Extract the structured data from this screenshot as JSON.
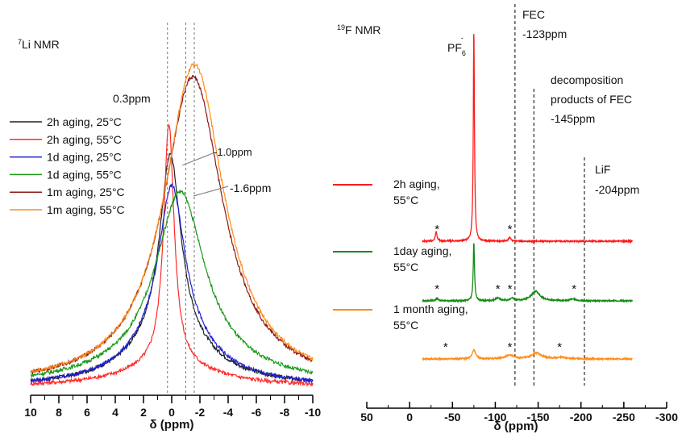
{
  "chart_data": [
    {
      "type": "line",
      "panel": "left",
      "title_prefix": "7",
      "title": "Li NMR",
      "xlabel": "δ (ppm)",
      "xlim": [
        10,
        -10
      ],
      "x_reversed": true,
      "x_ticks": [
        10,
        8,
        6,
        4,
        2,
        0,
        -2,
        -4,
        -6,
        -8,
        -10
      ],
      "grid": false,
      "legend_position": "left",
      "legend": [
        {
          "label": "2h aging, 25°C",
          "color": "#222222"
        },
        {
          "label": "2h aging, 55°C",
          "color": "#ff2a2a"
        },
        {
          "label": "1d aging, 25°C",
          "color": "#2020d0"
        },
        {
          "label": "1d aging, 55°C",
          "color": "#1a9a1a"
        },
        {
          "label": "1m aging, 25°C",
          "color": "#8b1a1a"
        },
        {
          "label": "1m aging, 55°C",
          "color": "#ff8c1a"
        }
      ],
      "series": [
        {
          "name": "2h aging, 25°C",
          "color": "#222222",
          "center": 0.1,
          "amplitude": 0.6,
          "width": 0.9,
          "broad_amplitude": 0.15,
          "broad_width": 3.5
        },
        {
          "name": "2h aging, 55°C",
          "color": "#ff2a2a",
          "center": 0.2,
          "amplitude": 0.78,
          "width": 0.45,
          "broad_amplitude": 0.07,
          "broad_width": 4.0
        },
        {
          "name": "1d aging, 25°C",
          "color": "#2020d0",
          "center": 0.0,
          "amplitude": 0.48,
          "width": 1.1,
          "broad_amplitude": 0.17,
          "broad_width": 3.2
        },
        {
          "name": "1d aging, 55°C",
          "color": "#1a9a1a",
          "center": -0.6,
          "amplitude": 0.56,
          "width": 2.1,
          "broad_amplitude": 0.07,
          "broad_width": 6.0
        },
        {
          "name": "1m aging, 25°C",
          "color": "#8b1a1a",
          "center": -1.5,
          "amplitude": 1.0,
          "width": 2.6,
          "broad_amplitude": 0.0,
          "broad_width": 1.0
        },
        {
          "name": "1m aging, 55°C",
          "color": "#ff8c1a",
          "center": -1.6,
          "amplitude": 1.04,
          "width": 2.6,
          "broad_amplitude": 0.0,
          "broad_width": 1.0
        }
      ],
      "reference_lines": [
        0.3,
        -1.0,
        -1.6
      ],
      "annotations": [
        "0.3ppm",
        "-1.0ppm",
        "-1.6ppm"
      ]
    },
    {
      "type": "line",
      "panel": "right",
      "title_prefix": "19",
      "title": "F NMR",
      "xlabel": "δ (ppm)",
      "xlim": [
        50,
        -300
      ],
      "x_reversed": true,
      "x_ticks": [
        50,
        0,
        -50,
        -100,
        -150,
        -200,
        -250,
        -300
      ],
      "grid": false,
      "reference_lines": [
        -123,
        -145,
        -204
      ],
      "annotations": {
        "pf6_base": "PF",
        "pf6_sub": "6",
        "pf6_sup": "-",
        "fec_name": "FEC",
        "fec_shift": "-123ppm",
        "decomp_line1": "decomposition",
        "decomp_line2": "products of FEC",
        "decomp_line3": "-145ppm",
        "lif_name": "LiF",
        "lif_shift": "-204ppm"
      },
      "x_range_data": [
        -15,
        -260
      ],
      "series": [
        {
          "name_line1": "2h aging,",
          "name_line2": "55°C",
          "color": "#ff1a1a",
          "peaks": [
            {
              "x": -75,
              "height": 1.0,
              "width": 0.8
            },
            {
              "x": -31,
              "height": 0.045,
              "width": 1.2
            },
            {
              "x": -117,
              "height": 0.018,
              "width": 1.5
            }
          ],
          "star_positions": [
            -32,
            -117
          ]
        },
        {
          "name_line1": "1day aging,",
          "name_line2": "55°C",
          "color": "#138a13",
          "peaks": [
            {
              "x": -75,
              "height": 0.3,
              "width": 0.9
            },
            {
              "x": -147,
              "height": 0.05,
              "width": 6
            },
            {
              "x": -103,
              "height": 0.015,
              "width": 3
            },
            {
              "x": -120,
              "height": 0.012,
              "width": 3
            },
            {
              "x": -32,
              "height": 0.012,
              "width": 2
            },
            {
              "x": -190,
              "height": 0.008,
              "width": 5
            }
          ],
          "star_positions": [
            -32,
            -103,
            -117,
            -192
          ]
        },
        {
          "name_line1": "1 month aging,",
          "name_line2": "55°C",
          "color": "#ff8c1a",
          "peaks": [
            {
              "x": -75,
              "height": 0.045,
              "width": 2.5
            },
            {
              "x": -117,
              "height": 0.02,
              "width": 6
            },
            {
              "x": -148,
              "height": 0.03,
              "width": 7
            },
            {
              "x": -178,
              "height": 0.008,
              "width": 7
            }
          ],
          "star_positions": [
            -42,
            -117,
            -175
          ]
        }
      ]
    }
  ]
}
